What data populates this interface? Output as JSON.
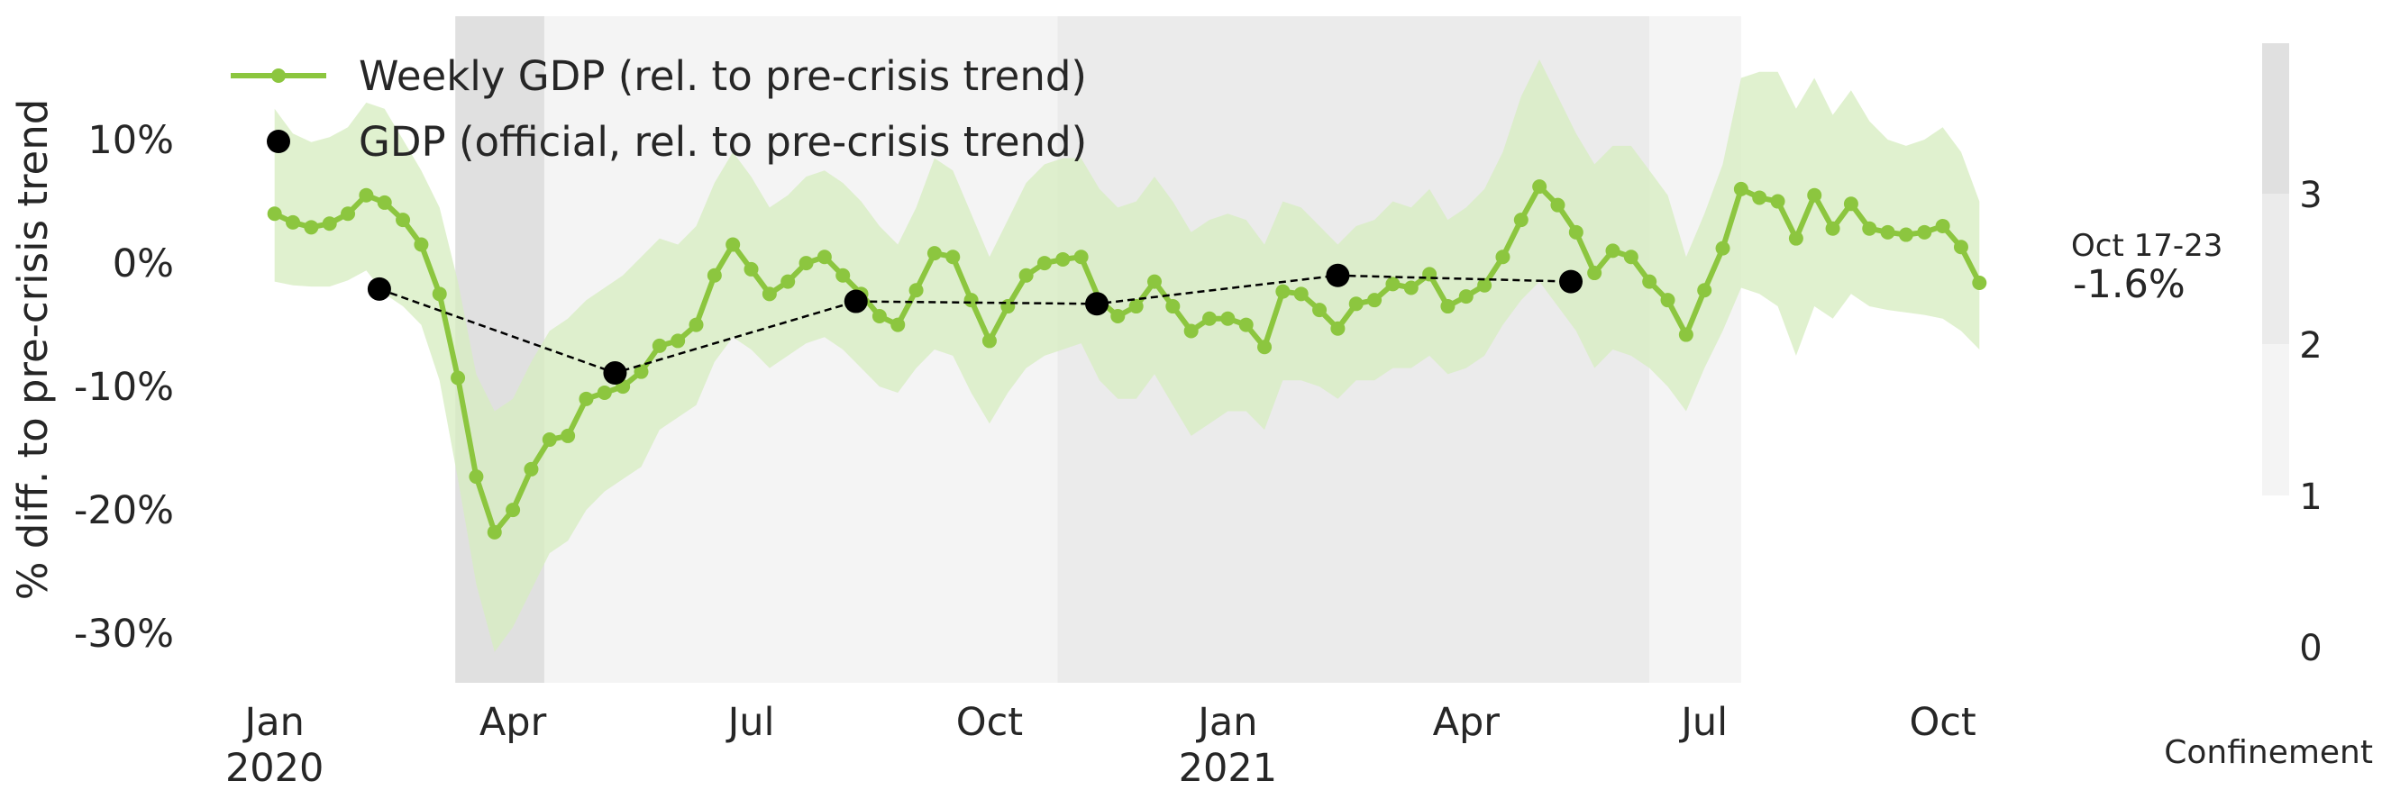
{
  "chart_data": {
    "type": "line",
    "ylabel": "% diff. to pre-crisis trend",
    "ylim": [
      -34,
      20
    ],
    "yticks": [
      10,
      0,
      -10,
      -20,
      -30
    ],
    "ytick_labels": [
      "10%",
      "0%",
      "-10%",
      "-20%",
      "-30%"
    ],
    "xlim": [
      "2019-12-23",
      "2021-11-22"
    ],
    "xticks": [
      {
        "date": "2020-01-06",
        "label": "Jan",
        "year": "2020"
      },
      {
        "date": "2020-04-06",
        "label": "Apr",
        "year": ""
      },
      {
        "date": "2020-07-06",
        "label": "Jul",
        "year": ""
      },
      {
        "date": "2020-10-05",
        "label": "Oct",
        "year": ""
      },
      {
        "date": "2021-01-04",
        "label": "Jan",
        "year": "2021"
      },
      {
        "date": "2021-04-05",
        "label": "Apr",
        "year": ""
      },
      {
        "date": "2021-07-05",
        "label": "Jul",
        "year": ""
      },
      {
        "date": "2021-10-04",
        "label": "Oct",
        "year": ""
      }
    ],
    "grid": false,
    "legend_position": "top-left",
    "legend": [
      "Weekly GDP (rel. to pre-crisis trend)",
      "GDP (official, rel. to pre-crisis trend)"
    ],
    "series": [
      {
        "name": "Weekly GDP (rel. to pre-crisis trend)",
        "style": "line-markers-with-band",
        "start": "2020-01-06",
        "step_days": 7,
        "values": [
          4.0,
          3.3,
          2.9,
          3.2,
          4.0,
          5.5,
          4.9,
          3.5,
          1.5,
          -2.5,
          -9.3,
          -17.3,
          -21.8,
          -20.0,
          -16.7,
          -14.3,
          -14.0,
          -11.0,
          -10.5,
          -10.0,
          -8.8,
          -6.7,
          -6.3,
          -5.0,
          -1.0,
          1.5,
          -0.5,
          -2.5,
          -1.5,
          0.0,
          0.5,
          -1.0,
          -2.5,
          -4.3,
          -5.0,
          -2.2,
          0.8,
          0.5,
          -3.0,
          -6.3,
          -3.5,
          -1.0,
          0.0,
          0.3,
          0.5,
          -3.0,
          -4.3,
          -3.5,
          -1.5,
          -3.5,
          -5.5,
          -4.5,
          -4.5,
          -5.0,
          -6.8,
          -2.3,
          -2.5,
          -3.8,
          -5.3,
          -3.3,
          -3.0,
          -1.7,
          -2.0,
          -0.9,
          -3.5,
          -2.7,
          -1.8,
          0.5,
          3.5,
          6.2,
          4.7,
          2.5,
          -0.8,
          1.0,
          0.5,
          -1.5,
          -3.0,
          -5.8,
          -2.2,
          1.2,
          6.0,
          5.3,
          5.0,
          2.0,
          5.5,
          2.8,
          4.8,
          2.8,
          2.5,
          2.3,
          2.5,
          3.0,
          1.3,
          -1.6
        ],
        "lower": [
          -1.5,
          -1.8,
          -1.9,
          -1.9,
          -1.4,
          -0.6,
          -2.5,
          -3.5,
          -5.0,
          -9.5,
          -17.5,
          -26.0,
          -31.5,
          -29.5,
          -26.5,
          -23.5,
          -22.5,
          -20.0,
          -18.5,
          -17.5,
          -16.5,
          -13.5,
          -12.5,
          -11.5,
          -8.0,
          -6.0,
          -7.0,
          -8.5,
          -7.5,
          -6.5,
          -6.0,
          -7.0,
          -8.5,
          -10.0,
          -10.5,
          -8.5,
          -7.0,
          -7.5,
          -10.5,
          -13.0,
          -10.5,
          -8.5,
          -7.5,
          -7.0,
          -6.5,
          -9.5,
          -11.0,
          -11.0,
          -9.0,
          -11.5,
          -14.0,
          -13.0,
          -12.0,
          -12.0,
          -13.5,
          -9.5,
          -9.5,
          -10.0,
          -11.0,
          -9.5,
          -9.5,
          -8.5,
          -8.5,
          -7.5,
          -9.0,
          -8.5,
          -7.5,
          -5.0,
          -3.0,
          -1.5,
          -3.5,
          -5.5,
          -8.5,
          -7.0,
          -7.5,
          -8.5,
          -10.0,
          -12.0,
          -8.5,
          -5.5,
          -2.0,
          -2.5,
          -3.5,
          -7.5,
          -3.5,
          -4.5,
          -2.5,
          -3.5,
          -3.8,
          -4.0,
          -4.2,
          -4.5,
          -5.5,
          -7.0
        ],
        "upper": [
          12.5,
          10.5,
          9.8,
          10.2,
          11.0,
          13.0,
          12.5,
          10.0,
          7.5,
          4.5,
          -1.5,
          -9.0,
          -12.0,
          -11.0,
          -8.0,
          -5.5,
          -4.5,
          -3.0,
          -2.0,
          -1.0,
          0.5,
          2.0,
          1.5,
          3.0,
          6.5,
          9.0,
          7.0,
          4.5,
          5.5,
          7.0,
          7.5,
          6.5,
          5.0,
          3.0,
          1.5,
          4.5,
          8.5,
          7.5,
          4.0,
          0.5,
          3.5,
          6.5,
          8.0,
          8.5,
          8.5,
          6.0,
          4.5,
          5.0,
          7.0,
          5.0,
          2.5,
          3.5,
          4.0,
          3.5,
          1.5,
          5.0,
          4.5,
          3.0,
          1.5,
          3.0,
          3.5,
          5.0,
          4.5,
          6.0,
          3.5,
          4.5,
          6.0,
          9.0,
          13.5,
          16.5,
          13.5,
          10.5,
          8.0,
          9.5,
          9.5,
          7.5,
          5.5,
          0.5,
          4.0,
          8.0,
          15.0,
          15.5,
          15.5,
          12.5,
          15.0,
          12.0,
          14.0,
          11.5,
          10.0,
          9.5,
          10.0,
          11.0,
          9.0,
          5.0
        ]
      },
      {
        "name": "GDP (official, rel. to pre-crisis trend)",
        "style": "points-dashed",
        "points": [
          {
            "x": "2020-02-15",
            "y": -2.1
          },
          {
            "x": "2020-05-15",
            "y": -8.9
          },
          {
            "x": "2020-08-15",
            "y": -3.1
          },
          {
            "x": "2020-11-15",
            "y": -3.3
          },
          {
            "x": "2021-02-15",
            "y": -1.0
          },
          {
            "x": "2021-05-15",
            "y": -1.5
          }
        ]
      }
    ],
    "annotation": {
      "period": "Oct 17-23",
      "value": "-1.6%"
    },
    "confinement": {
      "label": "Confinement",
      "colorbar_ticks": [
        "3",
        "2",
        "1",
        "0"
      ],
      "periods": [
        {
          "start": "2020-03-15",
          "end": "2020-04-18",
          "level": 3
        },
        {
          "start": "2020-04-18",
          "end": "2020-10-31",
          "level": 1
        },
        {
          "start": "2020-10-31",
          "end": "2021-06-14",
          "level": 2
        },
        {
          "start": "2021-06-14",
          "end": "2021-07-19",
          "level": 1
        }
      ]
    },
    "colors": {
      "line": "#8cc63f",
      "band": "#d7edc2",
      "official": "#000000",
      "level1": "#f4f4f4",
      "level2": "#ebebeb",
      "level3": "#e0e0e0"
    }
  }
}
